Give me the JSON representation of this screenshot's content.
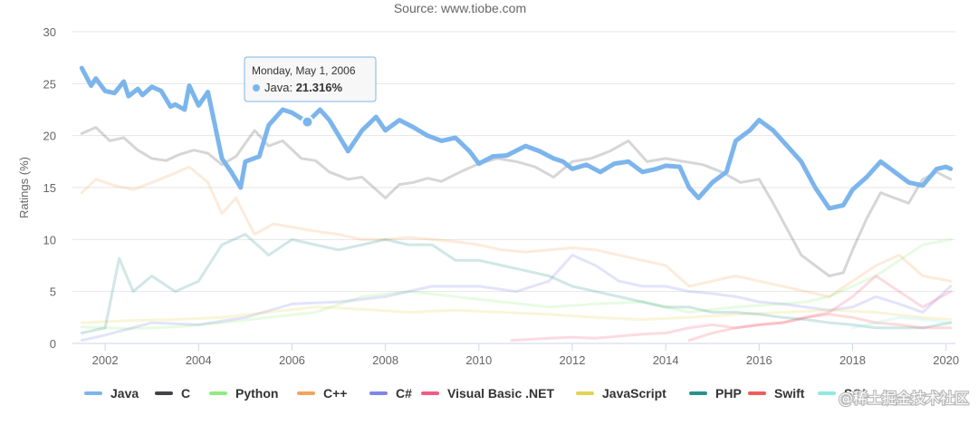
{
  "chart_data": {
    "type": "line",
    "title": "",
    "subtitle": "Source: www.tiobe.com",
    "xlabel": "",
    "ylabel": "Ratings (%)",
    "ylim": [
      0,
      30
    ],
    "yticks": [
      0,
      5,
      10,
      15,
      20,
      25,
      30
    ],
    "xlim": [
      2001.3,
      2020.2
    ],
    "xticks": [
      2002,
      2004,
      2006,
      2008,
      2010,
      2012,
      2014,
      2016,
      2018,
      2020
    ],
    "grid": "horizontal",
    "legend_position": "bottom",
    "series": [
      {
        "name": "Java",
        "color": "#7cb5ec",
        "opacity": 1.0,
        "x": [
          2001.5,
          2001.7,
          2001.8,
          2002.0,
          2002.2,
          2002.4,
          2002.5,
          2002.7,
          2002.8,
          2003.0,
          2003.2,
          2003.4,
          2003.5,
          2003.7,
          2003.8,
          2004.0,
          2004.2,
          2004.5,
          2004.7,
          2004.9,
          2005.0,
          2005.3,
          2005.5,
          2005.8,
          2006.0,
          2006.33,
          2006.6,
          2006.8,
          2007.2,
          2007.5,
          2007.8,
          2008.0,
          2008.3,
          2008.6,
          2008.9,
          2009.2,
          2009.5,
          2009.8,
          2010.0,
          2010.3,
          2010.6,
          2011.0,
          2011.3,
          2011.6,
          2011.8,
          2012.0,
          2012.3,
          2012.6,
          2012.9,
          2013.2,
          2013.5,
          2013.8,
          2014.0,
          2014.3,
          2014.5,
          2014.7,
          2015.0,
          2015.3,
          2015.5,
          2015.8,
          2016.0,
          2016.3,
          2016.6,
          2016.9,
          2017.2,
          2017.5,
          2017.8,
          2018.0,
          2018.3,
          2018.6,
          2018.9,
          2019.2,
          2019.5,
          2019.8,
          2020.0,
          2020.1
        ],
        "values": [
          26.5,
          24.8,
          25.5,
          24.3,
          24.1,
          25.2,
          23.8,
          24.5,
          23.9,
          24.7,
          24.3,
          22.8,
          23.0,
          22.5,
          24.8,
          22.9,
          24.2,
          17.8,
          16.5,
          15.0,
          17.5,
          18.0,
          21.0,
          22.5,
          22.2,
          21.3,
          22.5,
          21.5,
          18.5,
          20.5,
          21.8,
          20.5,
          21.5,
          20.8,
          20.0,
          19.5,
          19.8,
          18.5,
          17.3,
          18.0,
          18.1,
          19.0,
          18.5,
          17.8,
          17.5,
          16.8,
          17.2,
          16.5,
          17.3,
          17.5,
          16.5,
          16.8,
          17.1,
          17.0,
          15.0,
          14.0,
          15.5,
          16.5,
          19.5,
          20.5,
          21.5,
          20.5,
          19.0,
          17.5,
          15.0,
          13.0,
          13.3,
          14.8,
          16.0,
          17.5,
          16.5,
          15.5,
          15.2,
          16.8,
          17.0,
          16.8
        ]
      },
      {
        "name": "C",
        "color": "#434348",
        "opacity": 0.22,
        "x": [
          2001.5,
          2001.8,
          2002.1,
          2002.4,
          2002.7,
          2003.0,
          2003.3,
          2003.6,
          2003.9,
          2004.2,
          2004.5,
          2004.8,
          2005.2,
          2005.5,
          2005.8,
          2006.2,
          2006.5,
          2006.8,
          2007.2,
          2007.5,
          2007.8,
          2008.0,
          2008.3,
          2008.6,
          2008.9,
          2009.2,
          2009.6,
          2010.0,
          2010.4,
          2010.8,
          2011.2,
          2011.6,
          2012.0,
          2012.4,
          2012.8,
          2013.2,
          2013.6,
          2014.0,
          2014.4,
          2014.8,
          2015.2,
          2015.6,
          2016.0,
          2016.3,
          2016.6,
          2016.9,
          2017.2,
          2017.5,
          2017.8,
          2018.0,
          2018.3,
          2018.6,
          2018.9,
          2019.2,
          2019.5,
          2019.8,
          2020.1
        ],
        "values": [
          20.2,
          20.8,
          19.5,
          19.8,
          18.6,
          17.8,
          17.6,
          18.2,
          18.6,
          18.3,
          17.2,
          18.0,
          20.5,
          19.0,
          19.5,
          17.8,
          17.6,
          16.5,
          15.8,
          16.0,
          14.8,
          14.0,
          15.3,
          15.5,
          15.9,
          15.6,
          16.5,
          17.3,
          17.8,
          17.5,
          17.0,
          16.0,
          17.5,
          17.8,
          18.5,
          19.5,
          17.5,
          17.8,
          17.5,
          17.2,
          16.5,
          15.5,
          15.8,
          13.5,
          11.0,
          8.5,
          7.5,
          6.5,
          6.8,
          9.0,
          12.0,
          14.5,
          14.0,
          13.5,
          15.8,
          16.5,
          15.8
        ]
      },
      {
        "name": "Python",
        "color": "#90ed7d",
        "opacity": 0.22,
        "x": [
          2001.5,
          2002.5,
          2003.5,
          2004.5,
          2005.5,
          2006.5,
          2007.5,
          2008.5,
          2009.5,
          2010.5,
          2011.5,
          2012.5,
          2013.5,
          2014.5,
          2015.5,
          2016.5,
          2017.0,
          2017.5,
          2018.0,
          2018.5,
          2019.0,
          2019.5,
          2020.1
        ],
        "values": [
          1.6,
          1.4,
          1.6,
          2.0,
          2.5,
          3.0,
          4.5,
          5.0,
          4.5,
          4.0,
          3.5,
          3.8,
          4.0,
          3.0,
          3.5,
          3.8,
          4.0,
          4.5,
          5.5,
          6.5,
          8.0,
          9.5,
          10.0
        ]
      },
      {
        "name": "C++",
        "color": "#f7a35c",
        "opacity": 0.22,
        "x": [
          2001.5,
          2001.8,
          2002.2,
          2002.6,
          2003.0,
          2003.4,
          2003.8,
          2004.2,
          2004.5,
          2004.8,
          2005.2,
          2005.6,
          2006.0,
          2006.5,
          2007.0,
          2007.5,
          2008.0,
          2008.5,
          2009.0,
          2009.5,
          2010.0,
          2010.5,
          2011.0,
          2011.5,
          2012.0,
          2012.5,
          2013.0,
          2013.5,
          2014.0,
          2014.5,
          2015.0,
          2015.5,
          2016.0,
          2016.5,
          2017.0,
          2017.5,
          2018.0,
          2018.5,
          2019.0,
          2019.5,
          2020.1
        ],
        "values": [
          14.5,
          15.8,
          15.2,
          14.8,
          15.5,
          16.2,
          17.0,
          15.5,
          12.5,
          14.0,
          10.5,
          11.5,
          11.2,
          10.8,
          10.5,
          10.0,
          10.0,
          10.2,
          10.0,
          9.8,
          9.5,
          9.0,
          8.8,
          9.0,
          9.2,
          9.0,
          8.5,
          8.0,
          7.5,
          5.5,
          6.0,
          6.5,
          6.0,
          5.5,
          5.0,
          4.5,
          6.0,
          7.5,
          8.5,
          6.5,
          6.0
        ]
      },
      {
        "name": "C#",
        "color": "#8085e9",
        "opacity": 0.22,
        "x": [
          2001.5,
          2002.0,
          2003.0,
          2004.0,
          2005.0,
          2006.0,
          2007.0,
          2008.0,
          2009.0,
          2010.0,
          2010.8,
          2011.5,
          2012.0,
          2012.5,
          2013.0,
          2013.5,
          2014.0,
          2014.5,
          2015.0,
          2015.5,
          2016.0,
          2016.5,
          2017.0,
          2017.5,
          2018.0,
          2018.5,
          2019.0,
          2019.5,
          2020.1
        ],
        "values": [
          0.3,
          0.8,
          2.0,
          1.8,
          2.5,
          3.8,
          4.0,
          4.5,
          5.5,
          5.5,
          5.0,
          6.0,
          8.5,
          7.5,
          6.0,
          5.5,
          5.5,
          5.0,
          4.8,
          4.5,
          4.0,
          3.8,
          3.5,
          3.2,
          3.5,
          4.5,
          3.8,
          3.0,
          5.5
        ]
      },
      {
        "name": "Visual Basic .NET",
        "color": "#f15c80",
        "opacity": 0.22,
        "x": [
          2010.7,
          2011.5,
          2012.0,
          2012.5,
          2013.0,
          2013.5,
          2014.0,
          2014.5,
          2015.0,
          2015.5,
          2016.0,
          2016.5,
          2017.0,
          2017.5,
          2018.0,
          2018.5,
          2019.0,
          2019.5,
          2020.1
        ],
        "values": [
          0.3,
          0.5,
          0.6,
          0.5,
          0.7,
          0.9,
          1.0,
          1.5,
          1.8,
          1.5,
          1.8,
          2.0,
          2.5,
          3.0,
          4.5,
          6.5,
          5.0,
          3.5,
          5.0
        ]
      },
      {
        "name": "JavaScript",
        "color": "#e4d354",
        "opacity": 0.22,
        "x": [
          2001.5,
          2002.5,
          2003.5,
          2004.5,
          2005.5,
          2006.5,
          2007.5,
          2008.5,
          2009.5,
          2010.5,
          2011.5,
          2012.5,
          2013.5,
          2014.5,
          2015.5,
          2016.5,
          2017.5,
          2018.5,
          2019.5,
          2020.1
        ],
        "values": [
          2.0,
          2.2,
          2.3,
          2.5,
          3.0,
          3.5,
          3.3,
          3.0,
          3.2,
          3.0,
          2.8,
          2.5,
          2.3,
          2.5,
          2.8,
          3.0,
          3.2,
          3.0,
          2.5,
          2.3
        ]
      },
      {
        "name": "PHP",
        "color": "#2b908f",
        "opacity": 0.22,
        "x": [
          2001.5,
          2002.0,
          2002.3,
          2002.6,
          2003.0,
          2003.5,
          2004.0,
          2004.5,
          2005.0,
          2005.5,
          2006.0,
          2006.5,
          2007.0,
          2007.5,
          2008.0,
          2008.5,
          2009.0,
          2009.5,
          2010.0,
          2010.5,
          2011.0,
          2011.5,
          2012.0,
          2012.5,
          2013.0,
          2013.5,
          2014.0,
          2014.5,
          2015.0,
          2015.5,
          2016.0,
          2016.5,
          2017.0,
          2017.5,
          2018.0,
          2018.5,
          2019.0,
          2019.5,
          2020.1
        ],
        "values": [
          1.0,
          1.5,
          8.2,
          5.0,
          6.5,
          5.0,
          6.0,
          9.5,
          10.5,
          8.5,
          10.0,
          9.5,
          9.0,
          9.5,
          10.0,
          9.5,
          9.5,
          8.0,
          8.0,
          7.5,
          7.0,
          6.5,
          5.5,
          5.0,
          4.5,
          4.0,
          3.5,
          3.5,
          3.0,
          3.0,
          2.8,
          2.5,
          2.3,
          2.0,
          1.8,
          1.5,
          1.5,
          1.5,
          2.0
        ]
      },
      {
        "name": "Swift",
        "color": "#f45b5b",
        "opacity": 0.22,
        "x": [
          2014.5,
          2015.0,
          2015.5,
          2016.0,
          2016.5,
          2017.0,
          2017.5,
          2018.0,
          2018.5,
          2019.0,
          2019.5,
          2020.1
        ],
        "values": [
          0.3,
          1.0,
          1.5,
          1.8,
          2.0,
          2.5,
          2.8,
          2.5,
          2.0,
          1.8,
          1.5,
          1.5
        ]
      },
      {
        "name": "SQL",
        "color": "#91e8e1",
        "opacity": 0.22,
        "x": [
          2018.0,
          2018.5,
          2019.0,
          2019.5,
          2020.1
        ],
        "values": [
          1.5,
          2.0,
          2.5,
          2.3,
          2.0
        ]
      }
    ],
    "tooltip": {
      "date": "Monday, May 1, 2006",
      "series": "Java",
      "value": "21.316%",
      "x": 2006.33,
      "y": 21.316
    }
  },
  "watermark": "@稀土掘金技术社区"
}
